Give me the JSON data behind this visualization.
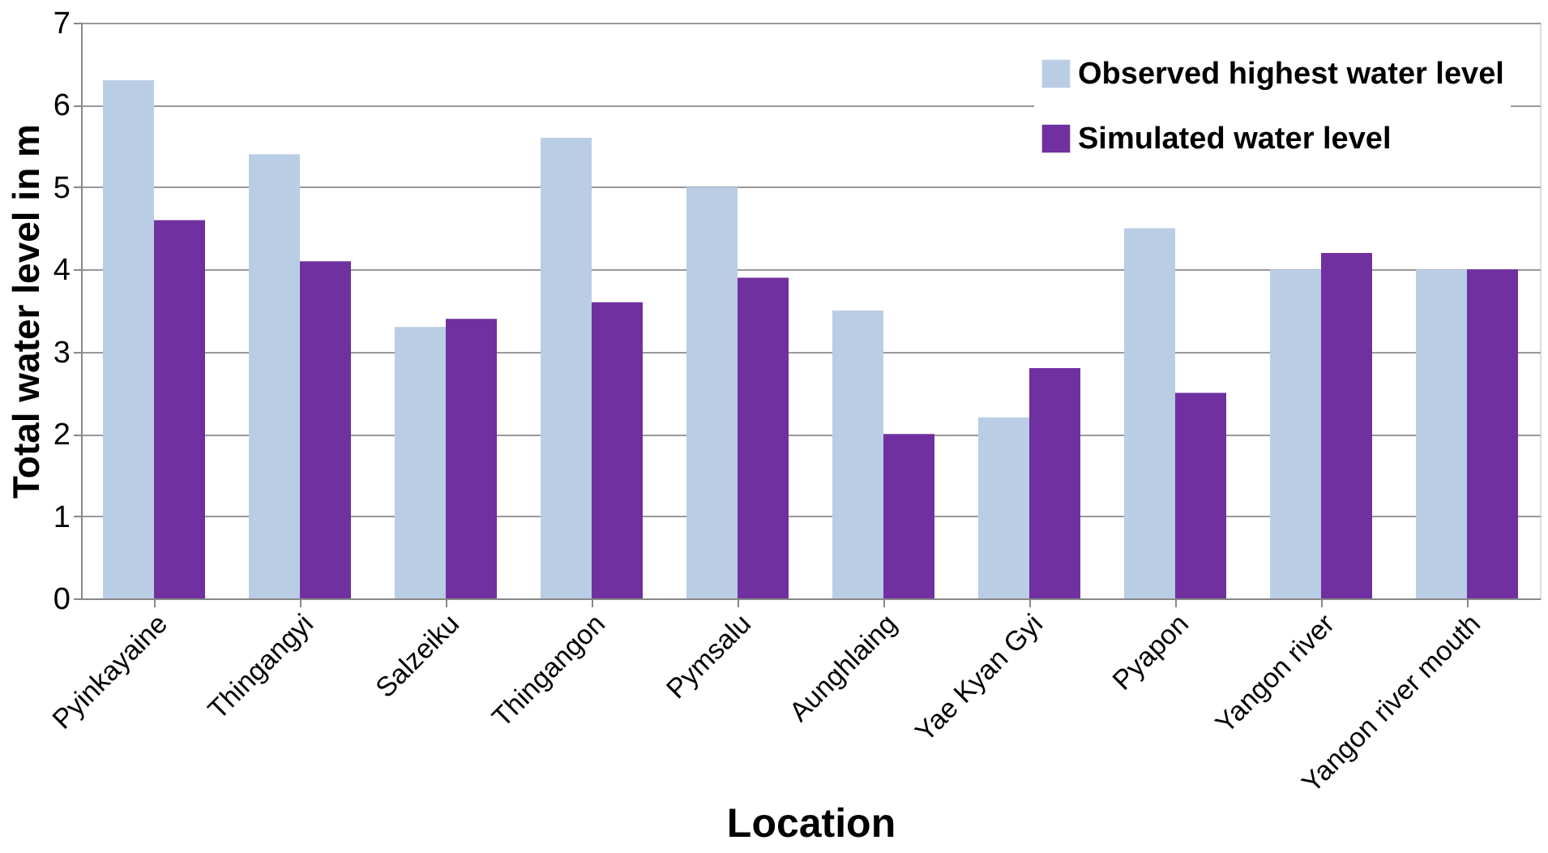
{
  "chart_data": {
    "type": "bar",
    "xlabel": "Location",
    "ylabel": "Total water level in m",
    "categories": [
      "Pyinkayaine",
      "Thingangyi",
      "Salzeiku",
      "Thingangon",
      "Pymsalu",
      "Aunghlaing",
      "Yae Kyan Gyi",
      "Pyapon",
      "Yangon river",
      "Yangon river mouth"
    ],
    "series": [
      {
        "name": "Observed highest water level",
        "color": "#b9cde5",
        "values": [
          6.3,
          5.4,
          3.3,
          5.6,
          5.0,
          3.5,
          2.2,
          4.5,
          4.0,
          4.0
        ]
      },
      {
        "name": "Simulated water level",
        "color": "#7030a0",
        "values": [
          4.6,
          4.1,
          3.4,
          3.6,
          3.9,
          2.0,
          2.8,
          2.5,
          4.2,
          4.0
        ]
      }
    ],
    "ylim": [
      0,
      7
    ],
    "yticks": [
      0,
      1,
      2,
      3,
      4,
      5,
      6,
      7
    ],
    "grid": "y",
    "legend": "top right"
  }
}
